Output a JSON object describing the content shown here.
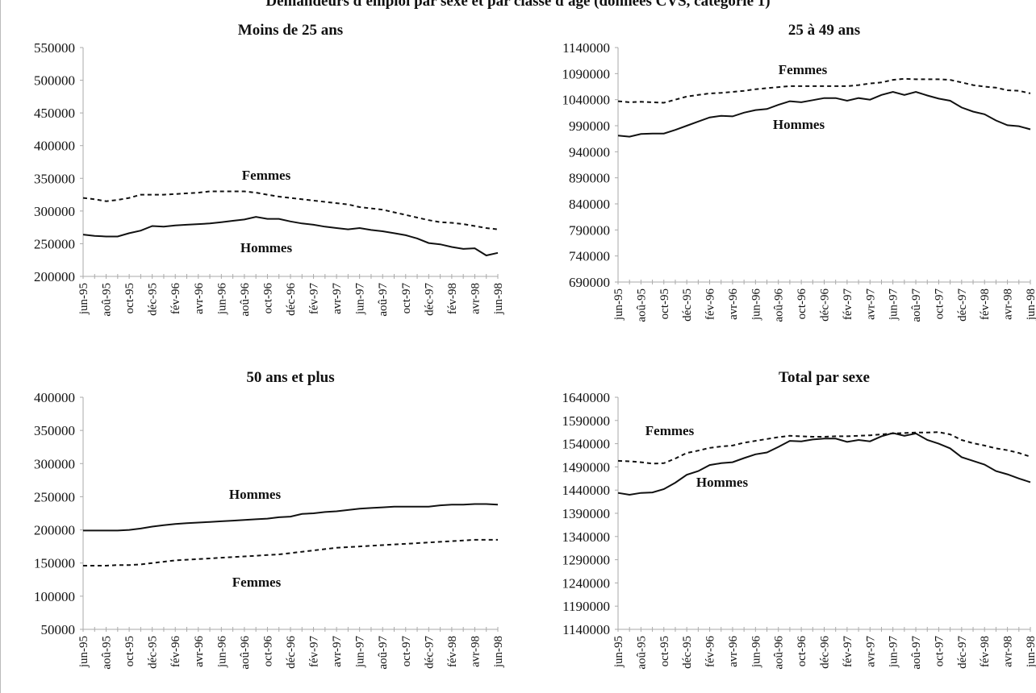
{
  "page": {
    "title": "Demandeurs d'emploi par sexe et par classe d'âge (données CVS, catégorie 1)"
  },
  "chart_data": [
    {
      "type": "line",
      "title": "Moins de 25 ans",
      "y_ticks": [
        "550000",
        "500000",
        "450000",
        "400000",
        "350000",
        "300000",
        "250000",
        "200000"
      ],
      "ylim": [
        200000,
        550000
      ],
      "x": [
        "jun-95",
        "jul-95",
        "aoû-95",
        "sep-95",
        "oct-95",
        "nov-95",
        "déc-95",
        "jan-96",
        "fév-96",
        "mar-96",
        "avr-96",
        "mai-96",
        "jun-96",
        "jul-96",
        "aoû-96",
        "sep-96",
        "oct-96",
        "nov-96",
        "déc-96",
        "jan-97",
        "fév-97",
        "mar-97",
        "avr-97",
        "mai-97",
        "jun-97",
        "jul-97",
        "aoû-97",
        "sep-97",
        "oct-97",
        "nov-97",
        "déc-97",
        "jan-98",
        "fév-98",
        "mar-98",
        "avr-98",
        "mai-98",
        "jun-98"
      ],
      "x_tick_labels": [
        "jun-95",
        "aoû-95",
        "oct-95",
        "déc-95",
        "fév-96",
        "avr-96",
        "jun-96",
        "aoû-96",
        "oct-96",
        "déc-96",
        "fév-97",
        "avr-97",
        "jun-97",
        "aoû-97",
        "oct-97",
        "déc-97",
        "fév-98",
        "avr-98",
        "jun-98"
      ],
      "series": [
        {
          "name": "Femmes",
          "style": "dashed",
          "values": [
            320000,
            318000,
            315000,
            317000,
            320000,
            325000,
            325000,
            325000,
            326000,
            327000,
            328000,
            330000,
            330000,
            330000,
            330000,
            328000,
            325000,
            322000,
            320000,
            318000,
            316000,
            314000,
            312000,
            310000,
            306000,
            304000,
            302000,
            298000,
            294000,
            290000,
            286000,
            283000,
            282000,
            280000,
            277000,
            274000,
            272000
          ]
        },
        {
          "name": "Hommes",
          "style": "solid",
          "values": [
            264000,
            262000,
            261000,
            261000,
            266000,
            270000,
            277000,
            276000,
            278000,
            279000,
            280000,
            281000,
            283000,
            285000,
            287000,
            291000,
            288000,
            288000,
            284000,
            281000,
            279000,
            276000,
            274000,
            272000,
            274000,
            271000,
            269000,
            266000,
            263000,
            258000,
            251000,
            249000,
            245000,
            242000,
            243000,
            232000,
            236000
          ]
        }
      ]
    },
    {
      "type": "line",
      "title": "25 à 49 ans",
      "y_ticks": [
        "1140000",
        "1090000",
        "1040000",
        "990000",
        "940000",
        "890000",
        "840000",
        "790000",
        "740000",
        "690000"
      ],
      "ylim": [
        690000,
        1140000
      ],
      "x": [
        "jun-95",
        "jul-95",
        "aoû-95",
        "sep-95",
        "oct-95",
        "nov-95",
        "déc-95",
        "jan-96",
        "fév-96",
        "mar-96",
        "avr-96",
        "mai-96",
        "jun-96",
        "jul-96",
        "aoû-96",
        "sep-96",
        "oct-96",
        "nov-96",
        "déc-96",
        "jan-97",
        "fév-97",
        "mar-97",
        "avr-97",
        "mai-97",
        "jun-97",
        "jul-97",
        "aoû-97",
        "sep-97",
        "oct-97",
        "nov-97",
        "déc-97",
        "jan-98",
        "fév-98",
        "mar-98",
        "avr-98",
        "mai-98",
        "jun-98"
      ],
      "x_tick_labels": [
        "jun-95",
        "aoû-95",
        "oct-95",
        "déc-95",
        "fév-96",
        "avr-96",
        "jun-96",
        "aoû-96",
        "oct-96",
        "déc-96",
        "fév-97",
        "avr-97",
        "jun-97",
        "aoû-97",
        "oct-97",
        "déc-97",
        "fév-98",
        "avr-98",
        "jun-98"
      ],
      "series": [
        {
          "name": "Femmes",
          "style": "dashed",
          "values": [
            1037000,
            1035000,
            1036000,
            1035000,
            1034000,
            1040000,
            1046000,
            1049000,
            1052000,
            1053000,
            1055000,
            1057000,
            1060000,
            1062000,
            1064000,
            1066000,
            1066000,
            1066000,
            1066000,
            1066000,
            1066000,
            1068000,
            1071000,
            1073000,
            1078000,
            1080000,
            1079000,
            1079000,
            1079000,
            1078000,
            1073000,
            1068000,
            1065000,
            1063000,
            1058000,
            1057000,
            1052000
          ]
        },
        {
          "name": "Hommes",
          "style": "solid",
          "values": [
            971000,
            969000,
            974000,
            975000,
            975000,
            982000,
            990000,
            998000,
            1006000,
            1009000,
            1008000,
            1015000,
            1020000,
            1022000,
            1030000,
            1037000,
            1035000,
            1039000,
            1043000,
            1043000,
            1038000,
            1043000,
            1040000,
            1049000,
            1055000,
            1049000,
            1055000,
            1048000,
            1042000,
            1038000,
            1025000,
            1017000,
            1012000,
            1000000,
            991000,
            989000,
            983000
          ]
        }
      ]
    },
    {
      "type": "line",
      "title": "50 ans et plus",
      "y_ticks": [
        "400000",
        "350000",
        "300000",
        "250000",
        "200000",
        "150000",
        "100000",
        "50000"
      ],
      "ylim": [
        50000,
        400000
      ],
      "x": [
        "jun-95",
        "jul-95",
        "aoû-95",
        "sep-95",
        "oct-95",
        "nov-95",
        "déc-95",
        "jan-96",
        "fév-96",
        "mar-96",
        "avr-96",
        "mai-96",
        "jun-96",
        "jul-96",
        "aoû-96",
        "sep-96",
        "oct-96",
        "nov-96",
        "déc-96",
        "jan-97",
        "fév-97",
        "mar-97",
        "avr-97",
        "mai-97",
        "jun-97",
        "jul-97",
        "aoû-97",
        "sep-97",
        "oct-97",
        "nov-97",
        "déc-97",
        "jan-98",
        "fév-98",
        "mar-98",
        "avr-98",
        "mai-98",
        "jun-98"
      ],
      "x_tick_labels": [
        "jun-95",
        "aoû-95",
        "oct-95",
        "déc-95",
        "fév-96",
        "avr-96",
        "jun-96",
        "aoû-96",
        "oct-96",
        "déc-96",
        "fév-97",
        "avr-97",
        "jun-97",
        "aoû-97",
        "oct-97",
        "déc-97",
        "fév-98",
        "avr-98",
        "jun-98"
      ],
      "series": [
        {
          "name": "Hommes",
          "style": "solid",
          "values": [
            199000,
            199000,
            199000,
            199000,
            200000,
            202000,
            205000,
            207000,
            209000,
            210000,
            211000,
            212000,
            213000,
            214000,
            215000,
            216000,
            217000,
            219000,
            220000,
            224000,
            225000,
            227000,
            228000,
            230000,
            232000,
            233000,
            234000,
            235000,
            235000,
            235000,
            235000,
            237000,
            238000,
            238000,
            239000,
            239000,
            238000
          ]
        },
        {
          "name": "Femmes",
          "style": "dashed",
          "values": [
            146000,
            146000,
            146000,
            147000,
            147000,
            148000,
            150000,
            152000,
            154000,
            155000,
            156000,
            157000,
            158000,
            159000,
            160000,
            161000,
            162000,
            163000,
            165000,
            167000,
            169000,
            171000,
            173000,
            174000,
            175000,
            176000,
            177000,
            178000,
            179000,
            180000,
            181000,
            182000,
            183000,
            184000,
            185000,
            185000,
            185000
          ]
        }
      ]
    },
    {
      "type": "line",
      "title": "Total par sexe",
      "y_ticks": [
        "1640000",
        "1590000",
        "1540000",
        "1490000",
        "1440000",
        "1390000",
        "1340000",
        "1290000",
        "1240000",
        "1190000",
        "1140000"
      ],
      "ylim": [
        1140000,
        1640000
      ],
      "x": [
        "jun-95",
        "jul-95",
        "aoû-95",
        "sep-95",
        "oct-95",
        "nov-95",
        "déc-95",
        "jan-96",
        "fév-96",
        "mar-96",
        "avr-96",
        "mai-96",
        "jun-96",
        "jul-96",
        "aoû-96",
        "sep-96",
        "oct-96",
        "nov-96",
        "déc-96",
        "jan-97",
        "fév-97",
        "mar-97",
        "avr-97",
        "mai-97",
        "jun-97",
        "jul-97",
        "aoû-97",
        "sep-97",
        "oct-97",
        "nov-97",
        "déc-97",
        "jan-98",
        "fév-98",
        "mar-98",
        "avr-98",
        "mai-98",
        "jun-98"
      ],
      "x_tick_labels": [
        "jun-95",
        "aoû-95",
        "oct-95",
        "déc-95",
        "fév-96",
        "avr-96",
        "jun-96",
        "aoû-96",
        "oct-96",
        "déc-96",
        "fév-97",
        "avr-97",
        "jun-97",
        "aoû-97",
        "oct-97",
        "déc-97",
        "fév-98",
        "avr-98",
        "jun-98"
      ],
      "series": [
        {
          "name": "Femmes",
          "style": "dashed",
          "values": [
            1503000,
            1502000,
            1500000,
            1497000,
            1498000,
            1508000,
            1520000,
            1525000,
            1531000,
            1534000,
            1536000,
            1542000,
            1546000,
            1550000,
            1554000,
            1557000,
            1556000,
            1555000,
            1555000,
            1556000,
            1556000,
            1557000,
            1558000,
            1560000,
            1562000,
            1563000,
            1564000,
            1564000,
            1565000,
            1560000,
            1548000,
            1541000,
            1536000,
            1530000,
            1526000,
            1520000,
            1512000
          ]
        },
        {
          "name": "Hommes",
          "style": "solid",
          "values": [
            1434000,
            1430000,
            1434000,
            1435000,
            1442000,
            1456000,
            1473000,
            1481000,
            1494000,
            1498000,
            1500000,
            1509000,
            1517000,
            1521000,
            1533000,
            1546000,
            1545000,
            1549000,
            1551000,
            1551000,
            1544000,
            1548000,
            1545000,
            1556000,
            1563000,
            1557000,
            1562000,
            1548000,
            1540000,
            1530000,
            1511000,
            1503000,
            1495000,
            1481000,
            1474000,
            1465000,
            1457000
          ]
        }
      ]
    }
  ]
}
